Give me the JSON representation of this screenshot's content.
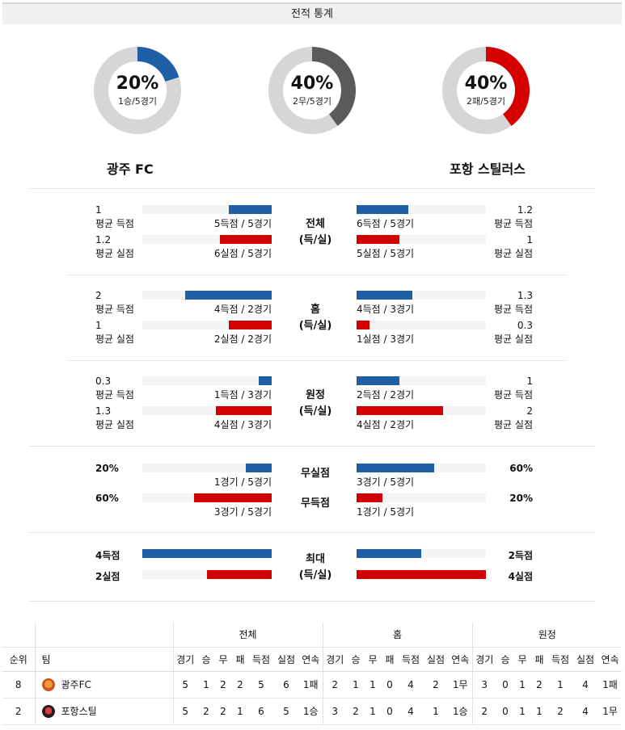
{
  "header": {
    "title": "전적 통계"
  },
  "donuts": [
    {
      "pct": "20%",
      "sub": "1승/5경기",
      "value": 0.2,
      "color": "#1f5fa6"
    },
    {
      "pct": "40%",
      "sub": "2무/5경기",
      "value": 0.4,
      "color": "#5a5a5a"
    },
    {
      "pct": "40%",
      "sub": "2패/5경기",
      "value": 0.4,
      "color": "#d40000"
    }
  ],
  "teams": {
    "left": "광주 FC",
    "right": "포항 스틸러스"
  },
  "sections": {
    "total": {
      "label1": "전체",
      "label2": "(득/실)",
      "left": {
        "scored": {
          "value": "1",
          "label": "평균 득점",
          "detail": "5득점 / 5경기",
          "fill": 0.33
        },
        "conceded": {
          "value": "1.2",
          "label": "평균 실점",
          "detail": "6실점 / 5경기",
          "fill": 0.4
        }
      },
      "right": {
        "scored": {
          "value": "1.2",
          "label": "평균 득점",
          "detail": "6득점 / 5경기",
          "fill": 0.4
        },
        "conceded": {
          "value": "1",
          "label": "평균 실점",
          "detail": "5실점 / 5경기",
          "fill": 0.33
        }
      }
    },
    "home": {
      "label1": "홈",
      "label2": "(득/실)",
      "left": {
        "scored": {
          "value": "2",
          "label": "평균 득점",
          "detail": "4득점 / 2경기",
          "fill": 0.67
        },
        "conceded": {
          "value": "1",
          "label": "평균 실점",
          "detail": "2실점 / 2경기",
          "fill": 0.33
        }
      },
      "right": {
        "scored": {
          "value": "1.3",
          "label": "평균 득점",
          "detail": "4득점 / 3경기",
          "fill": 0.43
        },
        "conceded": {
          "value": "0.3",
          "label": "평균 실점",
          "detail": "1실점 / 3경기",
          "fill": 0.1
        }
      }
    },
    "away": {
      "label1": "원정",
      "label2": "(득/실)",
      "left": {
        "scored": {
          "value": "0.3",
          "label": "평균 득점",
          "detail": "1득점 / 3경기",
          "fill": 0.1
        },
        "conceded": {
          "value": "1.3",
          "label": "평균 실점",
          "detail": "4실점 / 3경기",
          "fill": 0.43
        }
      },
      "right": {
        "scored": {
          "value": "1",
          "label": "평균 득점",
          "detail": "2득점 / 2경기",
          "fill": 0.33
        },
        "conceded": {
          "value": "2",
          "label": "평균 실점",
          "detail": "4실점 / 2경기",
          "fill": 0.67
        }
      }
    },
    "clean": {
      "label_clean": "무실점",
      "label_noscore": "무득점",
      "left": {
        "clean": {
          "value": "20%",
          "detail": "1경기 / 5경기",
          "fill": 0.2
        },
        "noscore": {
          "value": "60%",
          "detail": "3경기 / 5경기",
          "fill": 0.6
        }
      },
      "right": {
        "clean": {
          "value": "60%",
          "detail": "3경기 / 5경기",
          "fill": 0.6
        },
        "noscore": {
          "value": "20%",
          "detail": "1경기 / 5경기",
          "fill": 0.2
        }
      }
    },
    "max": {
      "label1": "최대",
      "label2": "(득/실)",
      "left": {
        "scored": {
          "value": "4득점",
          "fill": 1.0
        },
        "conceded": {
          "value": "2실점",
          "fill": 0.5
        }
      },
      "right": {
        "scored": {
          "value": "2득점",
          "fill": 0.5
        },
        "conceded": {
          "value": "4실점",
          "fill": 1.0
        }
      }
    }
  },
  "table": {
    "groups": [
      "전체",
      "홈",
      "원정"
    ],
    "col_rank": "순위",
    "col_team": "팀",
    "columns": [
      "경기",
      "승",
      "무",
      "패",
      "득점",
      "실점",
      "연속"
    ],
    "rows": [
      {
        "rank": "8",
        "team": "광주FC",
        "total": [
          "5",
          "1",
          "2",
          "2",
          "5",
          "6",
          "1패"
        ],
        "home": [
          "2",
          "1",
          "1",
          "0",
          "4",
          "2",
          "1무"
        ],
        "away": [
          "3",
          "0",
          "1",
          "2",
          "1",
          "4",
          "1패"
        ]
      },
      {
        "rank": "2",
        "team": "포항스틸",
        "total": [
          "5",
          "2",
          "2",
          "1",
          "6",
          "5",
          "1승"
        ],
        "home": [
          "3",
          "2",
          "1",
          "0",
          "4",
          "1",
          "1승"
        ],
        "away": [
          "2",
          "0",
          "1",
          "1",
          "2",
          "4",
          "1무"
        ]
      }
    ]
  }
}
